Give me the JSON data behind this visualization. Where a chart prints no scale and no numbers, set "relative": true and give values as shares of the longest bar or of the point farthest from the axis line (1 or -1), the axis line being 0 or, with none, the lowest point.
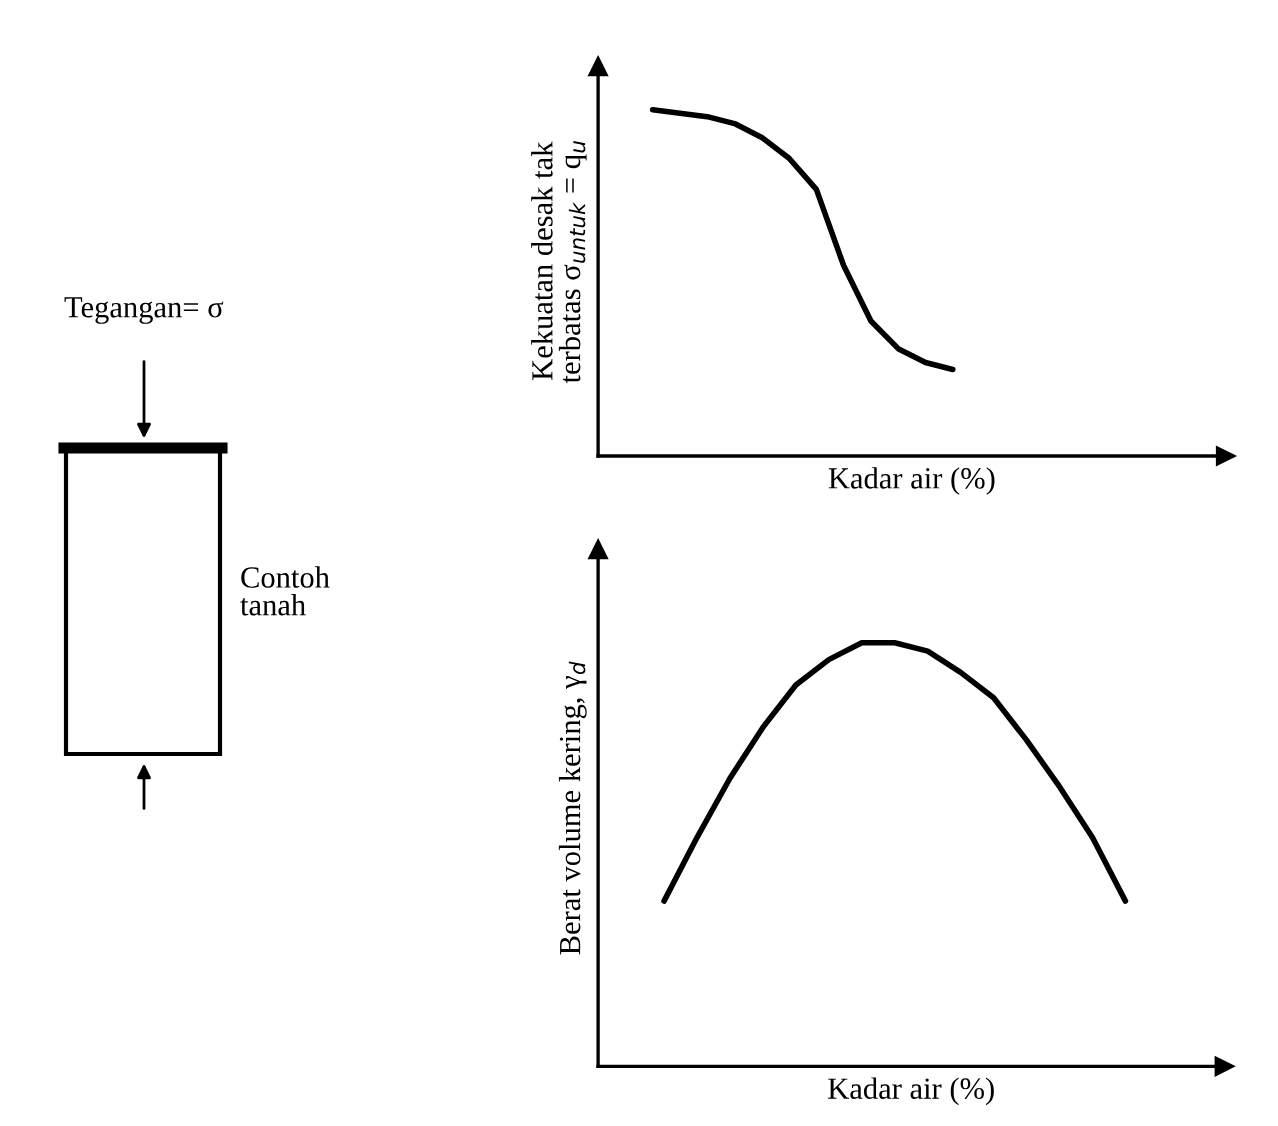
{
  "chart_data": [
    {
      "type": "other",
      "annotations": [
        "Tegangan= σ",
        "Contoh\ntanah"
      ]
    },
    {
      "type": "line",
      "relative": true,
      "tick_labels": false,
      "ylabel": "Kekuatan desak tak\nterbatas σ$_{untuk}$ = q$_{u}$",
      "xlabel": "Kadar air (%)",
      "categories": [
        null,
        null,
        null,
        null,
        null,
        null,
        null,
        null,
        null,
        null,
        null,
        null,
        null,
        null,
        null,
        null,
        null,
        null,
        null,
        null,
        null,
        null,
        null,
        null
      ],
      "series": [
        {
          "color": "#000000",
          "values": [
            null,
            null,
            1,
            0.99,
            0.98,
            0.96,
            0.92,
            0.86,
            0.77,
            0.55,
            0.39,
            0.31,
            0.27,
            0.25,
            null,
            null,
            null,
            null,
            null,
            null,
            null,
            null,
            null,
            null
          ]
        }
      ]
    },
    {
      "type": "line",
      "relative": true,
      "tick_labels": false,
      "ylabel": "Berat volume kering, γ$_{d}$",
      "xlabel": "Kadar air (%)",
      "categories": [
        null,
        null,
        null,
        null,
        null,
        null,
        null,
        null,
        null,
        null,
        null,
        null,
        null,
        null,
        null,
        null,
        null,
        null,
        null,
        null
      ],
      "series": [
        {
          "color": "#000000",
          "values": [
            null,
            null,
            0.39,
            0.54,
            0.68,
            0.8,
            0.9,
            0.96,
            1,
            1,
            0.98,
            0.93,
            0.87,
            0.77,
            0.66,
            0.54,
            0.39,
            null,
            null,
            null
          ]
        }
      ]
    }
  ]
}
